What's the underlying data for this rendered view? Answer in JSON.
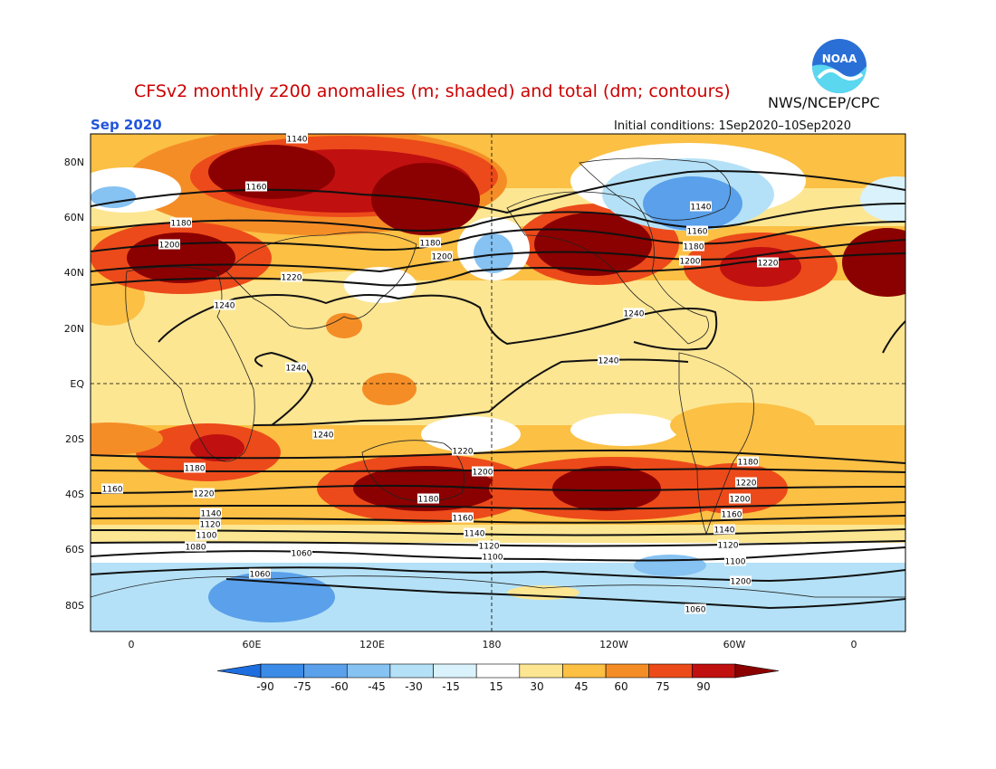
{
  "header": {
    "title": "CFSv2 monthly z200 anomalies (m; shaded) and total (dm; contours)",
    "agency": "NWS/NCEP/CPC",
    "month": "Sep 2020",
    "initial_conditions": "Initial conditions: 1Sep2020–10Sep2020",
    "logo_icon": "noaa-logo-icon"
  },
  "axes": {
    "lat_labels": [
      "80N",
      "60N",
      "40N",
      "20N",
      "EQ",
      "20S",
      "40S",
      "60S",
      "80S"
    ],
    "lon_labels": [
      "0",
      "60E",
      "120E",
      "180",
      "120W",
      "60W",
      "0"
    ]
  },
  "colorbar": {
    "levels": [
      "-90",
      "-75",
      "-60",
      "-45",
      "-30",
      "-15",
      "15",
      "30",
      "45",
      "60",
      "75",
      "90"
    ],
    "colors": [
      "#1e6ee0",
      "#3c8be6",
      "#5aa0ea",
      "#86c2f2",
      "#b4e1f7",
      "#d9f2fb",
      "#ffffff",
      "#fde692",
      "#fbc044",
      "#f58d26",
      "#ec4a1a",
      "#c01010",
      "#8b0000"
    ]
  },
  "contour_labels": [
    "1140",
    "1160",
    "1180",
    "1200",
    "1220",
    "1240",
    "1240",
    "1240",
    "1240",
    "1240",
    "1220",
    "1200",
    "1180",
    "1160",
    "1140",
    "1120",
    "1100",
    "1060",
    "1060",
    "1060",
    "1140",
    "1160",
    "1180",
    "1200",
    "1220",
    "1200",
    "1180",
    "1160",
    "1140",
    "1120",
    "1100",
    "1080",
    "1200",
    "1220",
    "1180",
    "1200",
    "1220",
    "1180",
    "1160",
    "1140",
    "1120",
    "1100"
  ]
}
